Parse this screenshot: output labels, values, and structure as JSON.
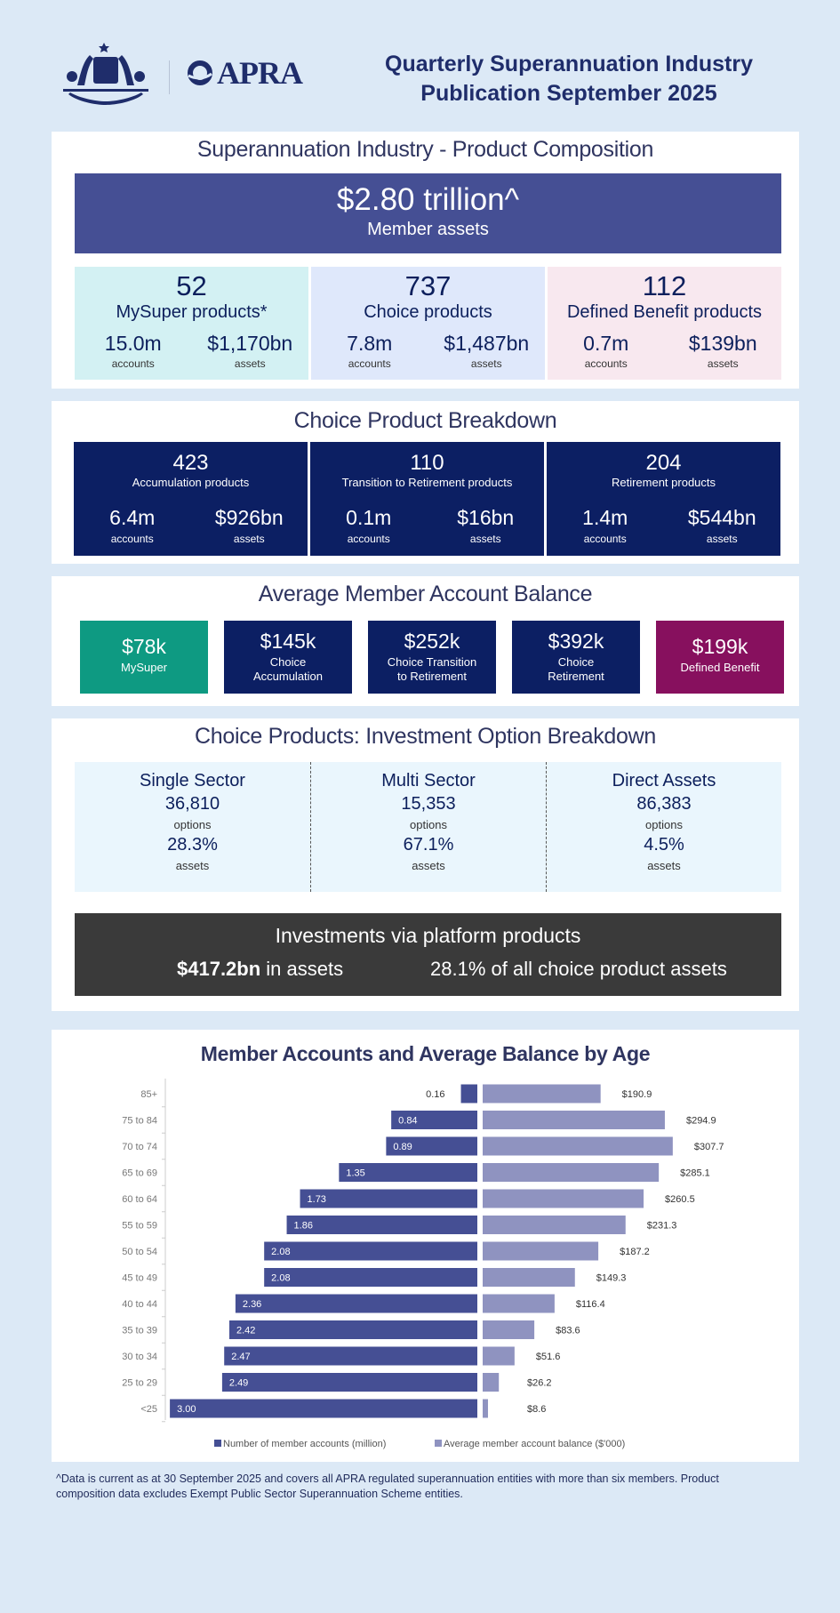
{
  "header": {
    "logo_text": "APRA",
    "title_line1": "Quarterly Superannuation Industry",
    "title_line2": "Publication September 2025"
  },
  "composition": {
    "title": "Superannuation Industry - Product Composition",
    "total_value": "$2.80 trillion^",
    "total_label": "Member assets",
    "products": [
      {
        "count": "52",
        "label": "MySuper products*",
        "accounts": "15.0m",
        "accounts_label": "accounts",
        "assets": "$1,170bn",
        "assets_label": "assets",
        "color": "#d3f1f3"
      },
      {
        "count": "737",
        "label": "Choice products",
        "accounts": "7.8m",
        "accounts_label": "accounts",
        "assets": "$1,487bn",
        "assets_label": "assets",
        "color": "#dfe8fb"
      },
      {
        "count": "112",
        "label": "Defined Benefit products",
        "accounts": "0.7m",
        "accounts_label": "accounts",
        "assets": "$139bn",
        "assets_label": "assets",
        "color": "#f8e8ef"
      }
    ]
  },
  "choice": {
    "title": "Choice Product Breakdown",
    "items": [
      {
        "count": "423",
        "label": "Accumulation products",
        "accounts": "6.4m",
        "accounts_label": "accounts",
        "assets": "$926bn",
        "assets_label": "assets"
      },
      {
        "count": "110",
        "label": "Transition to Retirement products",
        "accounts": "0.1m",
        "accounts_label": "accounts",
        "assets": "$16bn",
        "assets_label": "assets"
      },
      {
        "count": "204",
        "label": "Retirement products",
        "accounts": "1.4m",
        "accounts_label": "accounts",
        "assets": "$544bn",
        "assets_label": "assets"
      }
    ]
  },
  "balance": {
    "title": "Average Member Account Balance",
    "items": [
      {
        "value": "$78k",
        "label1": "MySuper",
        "label2": "",
        "color": "#0e9a82"
      },
      {
        "value": "$145k",
        "label1": "Choice",
        "label2": "Accumulation",
        "color": "#0c1f63"
      },
      {
        "value": "$252k",
        "label1": "Choice Transition",
        "label2": "to Retirement",
        "color": "#0c1f63"
      },
      {
        "value": "$392k",
        "label1": "Choice",
        "label2": "Retirement",
        "color": "#0c1f63"
      },
      {
        "value": "$199k",
        "label1": "Defined Benefit",
        "label2": "",
        "color": "#87105e"
      }
    ]
  },
  "options": {
    "title": "Choice Products: Investment Option Breakdown",
    "items": [
      {
        "name": "Single Sector",
        "count": "36,810",
        "count_label": "options",
        "share": "28.3%",
        "share_label": "assets"
      },
      {
        "name": "Multi Sector",
        "count": "15,353",
        "count_label": "options",
        "share": "67.1%",
        "share_label": "assets"
      },
      {
        "name": "Direct Assets",
        "count": "86,383",
        "count_label": "options",
        "share": "4.5%",
        "share_label": "assets"
      }
    ],
    "platform": {
      "title": "Investments via platform products",
      "assets_value": "$417.2bn",
      "assets_suffix": " in assets",
      "share_text": "28.1% of all choice product assets"
    }
  },
  "chart_data": {
    "type": "bar",
    "title": "Member Accounts and Average Balance by Age",
    "categories": [
      "85+",
      "75 to 84",
      "70 to 74",
      "65 to 69",
      "60 to 64",
      "55 to 59",
      "50 to 54",
      "45 to 49",
      "40 to 44",
      "35 to 39",
      "30 to 34",
      "25 to 29",
      "<25"
    ],
    "series": [
      {
        "name": "Number of member accounts (million)",
        "color": "#454f94",
        "values": [
          0.16,
          0.84,
          0.89,
          1.35,
          1.73,
          1.86,
          2.08,
          2.08,
          2.36,
          2.42,
          2.47,
          2.49,
          3.0
        ],
        "labels": [
          "0.16",
          "0.84",
          "0.89",
          "1.35",
          "1.73",
          "1.86",
          "2.08",
          "2.08",
          "2.36",
          "2.42",
          "2.47",
          "2.49",
          "3.00"
        ]
      },
      {
        "name": "Average member account balance ($'000)",
        "color": "#8f93c0",
        "values": [
          190.9,
          294.9,
          307.7,
          285.1,
          260.5,
          231.3,
          187.2,
          149.3,
          116.4,
          83.6,
          51.6,
          26.2,
          8.6
        ],
        "labels": [
          "$190.9",
          "$294.9",
          "$307.7",
          "$285.1",
          "$260.5",
          "$231.3",
          "$187.2",
          "$149.3",
          "$116.4",
          "$83.6",
          "$51.6",
          "$26.2",
          "$8.6"
        ]
      }
    ],
    "legend": "bottom",
    "grid": false
  },
  "footnote": {
    "line1": "^Data is current as at 30 September 2025 and covers all APRA regulated superannuation entities with more than six members.  Product",
    "line2": "composition data excludes Exempt Public Sector Superannuation Scheme entities."
  }
}
